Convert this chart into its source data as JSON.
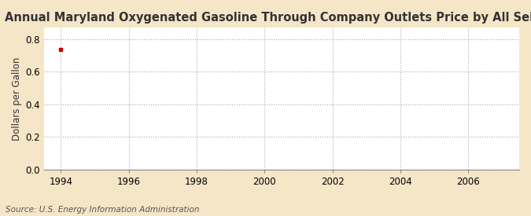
{
  "title": "Annual Maryland Oxygenated Gasoline Through Company Outlets Price by All Sellers",
  "ylabel": "Dollars per Gallon",
  "source_text": "Source: U.S. Energy Information Administration",
  "fig_bg_color": "#f5e6c8",
  "plot_bg_color": "#ffffff",
  "data_x": [
    1994
  ],
  "data_y": [
    0.737
  ],
  "data_color": "#cc0000",
  "xlim": [
    1993.5,
    2007.5
  ],
  "ylim": [
    0.0,
    0.87
  ],
  "xticks": [
    1994,
    1996,
    1998,
    2000,
    2002,
    2004,
    2006
  ],
  "yticks": [
    0.0,
    0.2,
    0.4,
    0.6,
    0.8
  ],
  "title_fontsize": 10.5,
  "label_fontsize": 8.5,
  "tick_fontsize": 8.5,
  "source_fontsize": 7.5,
  "grid_color": "#aaaaaa",
  "grid_linestyle": ":",
  "grid_linewidth": 0.8,
  "marker_size": 3
}
